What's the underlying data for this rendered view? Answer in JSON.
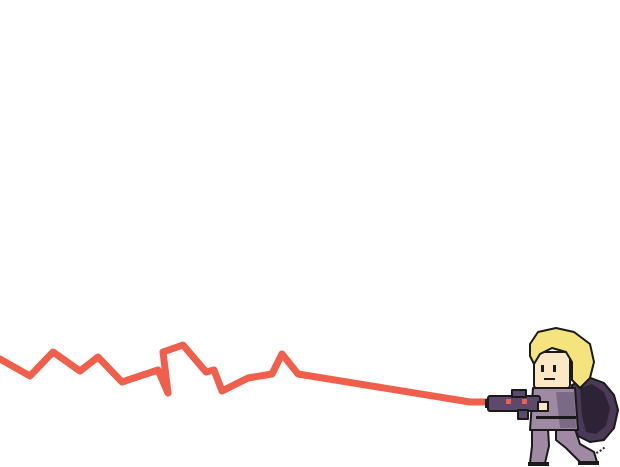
{
  "scene": {
    "background_color": "#ffffff",
    "beam": {
      "color": "#ef5f4b",
      "style": "zigzag-laser"
    },
    "character": {
      "name": "pixel-ghostbuster",
      "hair_color": "#f5e37d",
      "skin_color": "#fde8c6",
      "suit_color": "#a08aa3",
      "suit_shadow_color": "#7a6a86",
      "pack_color": "#4a3a58",
      "pack_dark_color": "#2d2336",
      "outline_color": "#1a1a1a",
      "gun_color": "#5d4a6b",
      "gun_light_color": "#ef5f4b",
      "facing": "left"
    }
  }
}
